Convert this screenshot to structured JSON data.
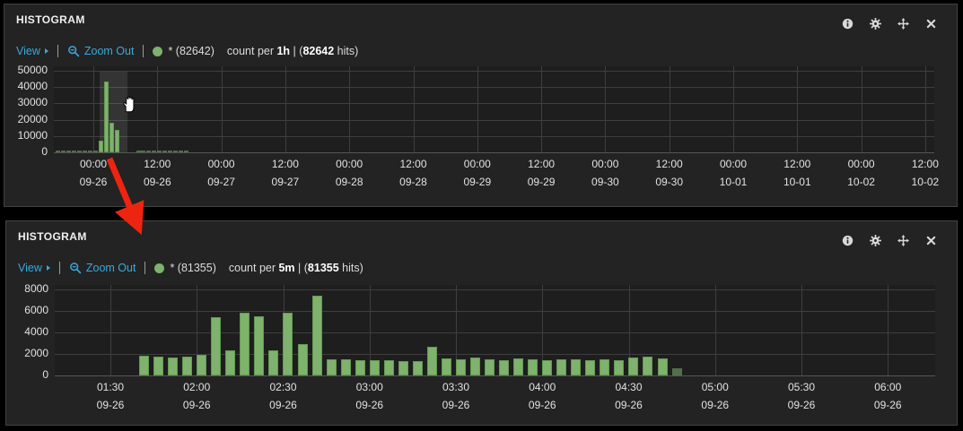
{
  "colors": {
    "link_blue": "#3aa9dd",
    "bar_green": "#7eb26d",
    "arrow_red": "#ed2510",
    "panel_bg": "#232323",
    "grid": "#3e3e3e"
  },
  "panels": [
    {
      "title": "HISTOGRAM",
      "icon_names": [
        "info-icon",
        "gear-icon",
        "move-icon",
        "close-icon"
      ],
      "toolbar": {
        "view_label": "View",
        "zoom_out_label": "Zoom Out",
        "legend_label": "* (82642)",
        "count_prefix": "count per ",
        "interval": "1h",
        "mid": " | (",
        "hits_count": "82642",
        "hits_suffix": " hits)"
      }
    },
    {
      "title": "HISTOGRAM",
      "icon_names": [
        "info-icon",
        "gear-icon",
        "move-icon",
        "close-icon"
      ],
      "toolbar": {
        "view_label": "View",
        "zoom_out_label": "Zoom Out",
        "legend_label": "* (81355)",
        "count_prefix": "count per ",
        "interval": "5m",
        "mid": " | (",
        "hits_count": "81355",
        "hits_suffix": " hits)"
      }
    }
  ],
  "chart_data": [
    {
      "type": "bar",
      "title": "Histogram count per 1h",
      "series_name": "*",
      "total_hits": 82642,
      "ylim": [
        0,
        50000
      ],
      "yticks": [
        0,
        10000,
        20000,
        30000,
        40000,
        50000
      ],
      "grid": true,
      "xticks": [
        {
          "time": "00:00",
          "date": "09-26"
        },
        {
          "time": "12:00",
          "date": "09-26"
        },
        {
          "time": "00:00",
          "date": "09-27"
        },
        {
          "time": "12:00",
          "date": "09-27"
        },
        {
          "time": "00:00",
          "date": "09-28"
        },
        {
          "time": "12:00",
          "date": "09-28"
        },
        {
          "time": "00:00",
          "date": "09-29"
        },
        {
          "time": "12:00",
          "date": "09-29"
        },
        {
          "time": "00:00",
          "date": "09-30"
        },
        {
          "time": "12:00",
          "date": "09-30"
        },
        {
          "time": "00:00",
          "date": "10-01"
        },
        {
          "time": "12:00",
          "date": "10-01"
        },
        {
          "time": "00:00",
          "date": "10-02"
        },
        {
          "time": "12:00",
          "date": "10-02"
        }
      ],
      "bars": [
        {
          "t": "09-25 17:00",
          "h": -7,
          "v": 300
        },
        {
          "t": "09-25 18:00",
          "h": -6,
          "v": 300
        },
        {
          "t": "09-25 19:00",
          "h": -5,
          "v": 300
        },
        {
          "t": "09-25 20:00",
          "h": -4,
          "v": 300
        },
        {
          "t": "09-25 21:00",
          "h": -3,
          "v": 300
        },
        {
          "t": "09-25 22:00",
          "h": -2,
          "v": 300
        },
        {
          "t": "09-25 23:00",
          "h": -1,
          "v": 300
        },
        {
          "t": "09-26 00:00",
          "h": 0,
          "v": 300
        },
        {
          "t": "09-26 01:00",
          "h": 1,
          "v": 7000
        },
        {
          "t": "09-26 02:00",
          "h": 2,
          "v": 43500
        },
        {
          "t": "09-26 03:00",
          "h": 3,
          "v": 18000
        },
        {
          "t": "09-26 04:00",
          "h": 4,
          "v": 13500
        },
        {
          "t": "09-26 08:00",
          "h": 8,
          "v": 300
        },
        {
          "t": "09-26 09:00",
          "h": 9,
          "v": 300
        },
        {
          "t": "09-26 10:00",
          "h": 10,
          "v": 300
        },
        {
          "t": "09-26 11:00",
          "h": 11,
          "v": 300
        },
        {
          "t": "09-26 12:00",
          "h": 12,
          "v": 300
        },
        {
          "t": "09-26 13:00",
          "h": 13,
          "v": 300
        },
        {
          "t": "09-26 14:00",
          "h": 14,
          "v": 300
        },
        {
          "t": "09-26 15:00",
          "h": 15,
          "v": 300
        },
        {
          "t": "09-26 16:00",
          "h": 16,
          "v": 300
        },
        {
          "t": "09-26 17:00",
          "h": 17,
          "v": 300
        }
      ],
      "selection": {
        "from_h": 1.2,
        "to_h": 6.4
      }
    },
    {
      "type": "bar",
      "title": "Histogram count per 5m (zoomed)",
      "series_name": "*",
      "total_hits": 81355,
      "ylim": [
        0,
        8000
      ],
      "yticks": [
        0,
        2000,
        4000,
        6000,
        8000
      ],
      "grid": true,
      "xticks": [
        {
          "time": "01:30",
          "date": "09-26"
        },
        {
          "time": "02:00",
          "date": "09-26"
        },
        {
          "time": "02:30",
          "date": "09-26"
        },
        {
          "time": "03:00",
          "date": "09-26"
        },
        {
          "time": "03:30",
          "date": "09-26"
        },
        {
          "time": "04:00",
          "date": "09-26"
        },
        {
          "time": "04:30",
          "date": "09-26"
        },
        {
          "time": "05:00",
          "date": "09-26"
        },
        {
          "time": "05:30",
          "date": "09-26"
        },
        {
          "time": "06:00",
          "date": "09-26"
        }
      ],
      "bars": [
        {
          "t": "01:40",
          "v": 1800
        },
        {
          "t": "01:45",
          "v": 1750
        },
        {
          "t": "01:50",
          "v": 1700
        },
        {
          "t": "01:55",
          "v": 1750
        },
        {
          "t": "02:00",
          "v": 1950
        },
        {
          "t": "02:05",
          "v": 5450
        },
        {
          "t": "02:10",
          "v": 2300
        },
        {
          "t": "02:15",
          "v": 5800
        },
        {
          "t": "02:20",
          "v": 5500
        },
        {
          "t": "02:25",
          "v": 2300
        },
        {
          "t": "02:30",
          "v": 5800
        },
        {
          "t": "02:35",
          "v": 2950
        },
        {
          "t": "02:40",
          "v": 7400
        },
        {
          "t": "02:45",
          "v": 1500
        },
        {
          "t": "02:50",
          "v": 1500
        },
        {
          "t": "02:55",
          "v": 1450
        },
        {
          "t": "03:00",
          "v": 1450
        },
        {
          "t": "03:05",
          "v": 1400
        },
        {
          "t": "03:10",
          "v": 1350
        },
        {
          "t": "03:15",
          "v": 1300
        },
        {
          "t": "03:20",
          "v": 2650
        },
        {
          "t": "03:25",
          "v": 1600
        },
        {
          "t": "03:30",
          "v": 1500
        },
        {
          "t": "03:35",
          "v": 1650
        },
        {
          "t": "03:40",
          "v": 1500
        },
        {
          "t": "03:45",
          "v": 1450
        },
        {
          "t": "03:50",
          "v": 1550
        },
        {
          "t": "03:55",
          "v": 1500
        },
        {
          "t": "04:00",
          "v": 1450
        },
        {
          "t": "04:05",
          "v": 1500
        },
        {
          "t": "04:10",
          "v": 1500
        },
        {
          "t": "04:15",
          "v": 1450
        },
        {
          "t": "04:20",
          "v": 1500
        },
        {
          "t": "04:25",
          "v": 1450
        },
        {
          "t": "04:30",
          "v": 1700
        },
        {
          "t": "04:35",
          "v": 1750
        },
        {
          "t": "04:40",
          "v": 1600
        },
        {
          "t": "04:45",
          "v": 700
        }
      ]
    }
  ]
}
